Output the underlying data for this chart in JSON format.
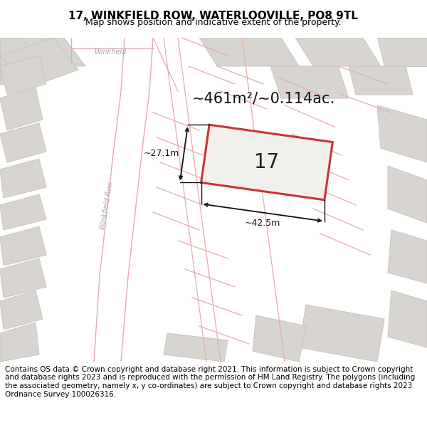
{
  "title": "17, WINKFIELD ROW, WATERLOOVILLE, PO8 9TL",
  "subtitle": "Map shows position and indicative extent of the property.",
  "footer": "Contains OS data © Crown copyright and database right 2021. This information is subject to Crown copyright and database rights 2023 and is reproduced with the permission of HM Land Registry. The polygons (including the associated geometry, namely x, y co-ordinates) are subject to Crown copyright and database rights 2023 Ordnance Survey 100026316.",
  "bg_color": "#f2f0ed",
  "map_bg_color": "#f2f0ed",
  "building_fill": "#d8d5d0",
  "building_edge": "#c8c5c0",
  "red_color": "#cc3333",
  "pink_color": "#e8aaaa",
  "dim_color": "#111111",
  "road_label_color": "#aaaaaa",
  "area_text": "~461m²/~0.114ac.",
  "width_text": "~42.5m",
  "height_text": "~27.1m",
  "label_17": "17",
  "title_fontsize": 11,
  "subtitle_fontsize": 9,
  "footer_fontsize": 7.5,
  "area_fontsize": 15,
  "dim_fontsize": 9,
  "num_fontsize": 20
}
